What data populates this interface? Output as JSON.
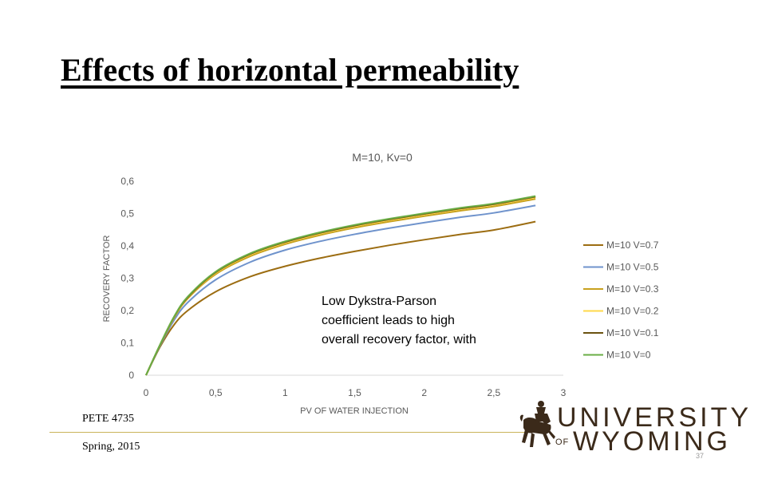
{
  "slide": {
    "title": "Effects of horizontal permeability",
    "footer_course": "PETE 4735",
    "footer_term": "Spring, 2015",
    "page_number": "37"
  },
  "logo": {
    "line1": "UNIVERSITY",
    "of": "OF",
    "line2": "WYOMING"
  },
  "chart_data": {
    "type": "line",
    "title": "M=10, Kv=0",
    "xlabel": "PV OF WATER INJECTION",
    "ylabel": "RECOVERY FACTOR",
    "xlim": [
      0,
      3
    ],
    "ylim": [
      0,
      0.6
    ],
    "x_ticks": [
      "0",
      "0,5",
      "1",
      "1,5",
      "2",
      "2,5",
      "3"
    ],
    "y_ticks": [
      "0",
      "0,1",
      "0,2",
      "0,3",
      "0,4",
      "0,5",
      "0,6"
    ],
    "grid": false,
    "legend_position": "right",
    "x": [
      0,
      0.1,
      0.2,
      0.3,
      0.5,
      0.75,
      1.0,
      1.25,
      1.5,
      1.75,
      2.0,
      2.25,
      2.5,
      2.8
    ],
    "series": [
      {
        "name": "M=10 V=0.7",
        "color": "#9c6d12",
        "values": [
          0,
          0.087,
          0.155,
          0.2,
          0.258,
          0.305,
          0.337,
          0.362,
          0.383,
          0.402,
          0.419,
          0.435,
          0.449,
          0.475
        ]
      },
      {
        "name": "M=10 V=0.5",
        "color": "#6f93cc",
        "values": [
          0,
          0.09,
          0.169,
          0.225,
          0.295,
          0.35,
          0.387,
          0.414,
          0.436,
          0.455,
          0.472,
          0.488,
          0.502,
          0.525
        ]
      },
      {
        "name": "M=10 V=0.3",
        "color": "#c8a11e",
        "values": [
          0,
          0.092,
          0.176,
          0.237,
          0.312,
          0.368,
          0.405,
          0.433,
          0.456,
          0.475,
          0.492,
          0.508,
          0.522,
          0.545
        ]
      },
      {
        "name": "M=10 V=0.2",
        "color": "#ffd84a",
        "values": [
          0,
          0.093,
          0.178,
          0.24,
          0.316,
          0.373,
          0.41,
          0.438,
          0.461,
          0.48,
          0.497,
          0.513,
          0.527,
          0.55
        ]
      },
      {
        "name": "M=10 V=0.1",
        "color": "#6b5210",
        "values": [
          0,
          0.093,
          0.179,
          0.241,
          0.318,
          0.375,
          0.412,
          0.44,
          0.463,
          0.482,
          0.499,
          0.515,
          0.529,
          0.552
        ]
      },
      {
        "name": "M=10 V=0",
        "color": "#6aad45",
        "values": [
          0,
          0.094,
          0.18,
          0.243,
          0.32,
          0.377,
          0.414,
          0.442,
          0.465,
          0.484,
          0.501,
          0.517,
          0.531,
          0.554
        ]
      }
    ],
    "annotation": {
      "lines": [
        "Low Dykstra-Parson",
        "coefficient leads to high",
        "overall recovery factor, with"
      ]
    }
  }
}
